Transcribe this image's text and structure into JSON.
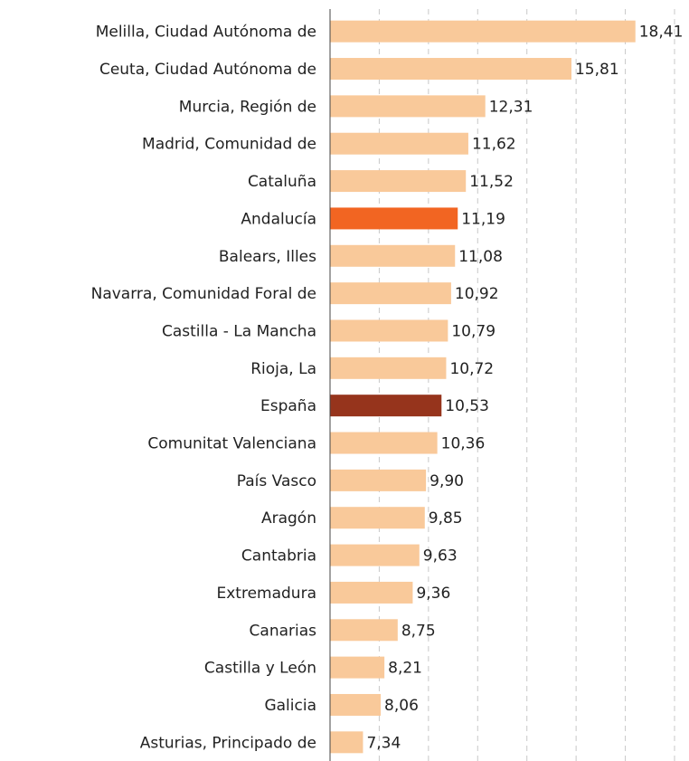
{
  "chart_data": {
    "type": "bar",
    "orientation": "horizontal",
    "categories": [
      "Melilla, Ciudad Autónoma de",
      "Ceuta, Ciudad Autónoma de",
      "Murcia, Región de",
      "Madrid, Comunidad de",
      "Cataluña",
      "Andalucía",
      "Balears, Illes",
      "Navarra, Comunidad Foral de",
      "Castilla - La Mancha",
      "Rioja, La",
      "España",
      "Comunitat Valenciana",
      "País Vasco",
      "Aragón",
      "Cantabria",
      "Extremadura",
      "Canarias",
      "Castilla y León",
      "Galicia",
      "Asturias, Principado de"
    ],
    "values": [
      18.41,
      15.81,
      12.31,
      11.62,
      11.52,
      11.19,
      11.08,
      10.92,
      10.79,
      10.72,
      10.53,
      10.36,
      9.9,
      9.85,
      9.63,
      9.36,
      8.75,
      8.21,
      8.06,
      7.34
    ],
    "value_labels": [
      "18,41",
      "15,81",
      "12,31",
      "11,62",
      "11,52",
      "11,19",
      "11,08",
      "10,92",
      "10,79",
      "10,72",
      "10,53",
      "10,36",
      "9,90",
      "9,85",
      "9,63",
      "9,36",
      "8,75",
      "8,21",
      "8,06",
      "7,34"
    ],
    "colors": [
      "#f9c99a",
      "#f9c99a",
      "#f9c99a",
      "#f9c99a",
      "#f9c99a",
      "#f26522",
      "#f9c99a",
      "#f9c99a",
      "#f9c99a",
      "#f9c99a",
      "#96341c",
      "#f9c99a",
      "#f9c99a",
      "#f9c99a",
      "#f9c99a",
      "#f9c99a",
      "#f9c99a",
      "#f9c99a",
      "#f9c99a",
      "#f9c99a"
    ],
    "xlim": [
      6,
      20
    ],
    "xticks": [
      8,
      10,
      12,
      14,
      16,
      18,
      20
    ],
    "grid": true
  }
}
